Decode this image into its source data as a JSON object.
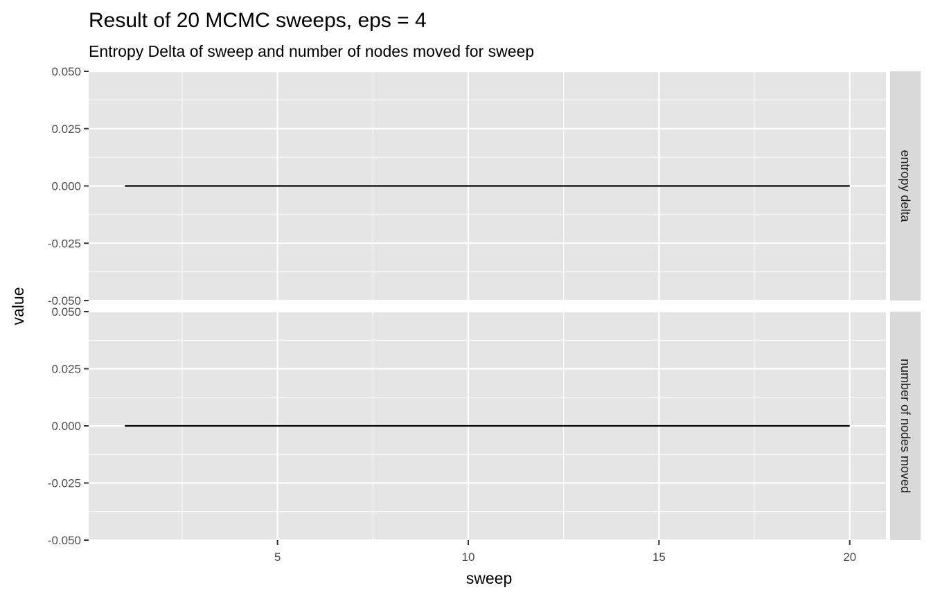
{
  "chart_data": {
    "type": "line",
    "title": "Result of 20 MCMC sweeps, eps = 4",
    "subtitle": "Entropy Delta of sweep and number of nodes moved for sweep",
    "xlabel": "sweep",
    "ylabel": "value",
    "xlim": [
      0.05,
      20.95
    ],
    "ylim": [
      -0.05,
      0.05
    ],
    "x_ticks": [
      5,
      10,
      15,
      20
    ],
    "x_tick_labels": [
      "5",
      "10",
      "15",
      "20"
    ],
    "y_ticks": [
      -0.05,
      -0.025,
      0,
      0.025,
      0.05
    ],
    "y_tick_labels": [
      "-0.050",
      "-0.025",
      "0.000",
      "0.025",
      "0.050"
    ],
    "grid": true,
    "panel_background": "#e5e5e5",
    "strip_background": "#d9d9d9",
    "grid_color": "#ffffff",
    "line_color": "#000000",
    "facets": [
      {
        "label": "entropy delta",
        "x": [
          1,
          2,
          3,
          4,
          5,
          6,
          7,
          8,
          9,
          10,
          11,
          12,
          13,
          14,
          15,
          16,
          17,
          18,
          19,
          20
        ],
        "y": [
          0,
          0,
          0,
          0,
          0,
          0,
          0,
          0,
          0,
          0,
          0,
          0,
          0,
          0,
          0,
          0,
          0,
          0,
          0,
          0
        ]
      },
      {
        "label": "number of nodes moved",
        "x": [
          1,
          2,
          3,
          4,
          5,
          6,
          7,
          8,
          9,
          10,
          11,
          12,
          13,
          14,
          15,
          16,
          17,
          18,
          19,
          20
        ],
        "y": [
          0,
          0,
          0,
          0,
          0,
          0,
          0,
          0,
          0,
          0,
          0,
          0,
          0,
          0,
          0,
          0,
          0,
          0,
          0,
          0
        ]
      }
    ]
  }
}
